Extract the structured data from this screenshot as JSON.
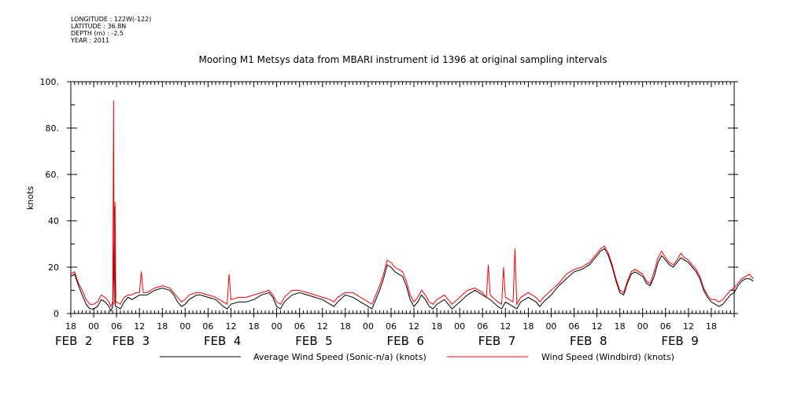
{
  "metadata": {
    "longitude": "LONGITUDE : 122W(-122)",
    "latitude": "LATITUDE : 36.8N",
    "depth": "DEPTH (m) : -2.5",
    "year": "YEAR : 2011"
  },
  "chart_data": {
    "type": "line",
    "title": "Mooring M1 Metsys data from MBARI instrument id 1396 at original sampling intervals",
    "ylabel": "knots",
    "xlabel": "",
    "ylim": [
      0,
      100
    ],
    "xlim_hours": [
      -6,
      168
    ],
    "y_ticks": [
      {
        "v": 0,
        "label": "0"
      },
      {
        "v": 20,
        "label": "20"
      },
      {
        "v": 40,
        "label": "40"
      },
      {
        "v": 60,
        "label": "60."
      },
      {
        "v": 80,
        "label": "80."
      },
      {
        "v": 100,
        "label": "100."
      }
    ],
    "x_hour_ticks": [
      {
        "h": -6,
        "label": "18"
      },
      {
        "h": 0,
        "label": "00"
      },
      {
        "h": 6,
        "label": "06"
      },
      {
        "h": 12,
        "label": "12"
      },
      {
        "h": 18,
        "label": "18"
      },
      {
        "h": 24,
        "label": "00"
      },
      {
        "h": 30,
        "label": "06"
      },
      {
        "h": 36,
        "label": "12"
      },
      {
        "h": 42,
        "label": "18"
      },
      {
        "h": 48,
        "label": "00"
      },
      {
        "h": 54,
        "label": "06"
      },
      {
        "h": 60,
        "label": "12"
      },
      {
        "h": 66,
        "label": "18"
      },
      {
        "h": 72,
        "label": "00"
      },
      {
        "h": 78,
        "label": "06"
      },
      {
        "h": 84,
        "label": "12"
      },
      {
        "h": 90,
        "label": "18"
      },
      {
        "h": 96,
        "label": "00"
      },
      {
        "h": 102,
        "label": "06"
      },
      {
        "h": 108,
        "label": "12"
      },
      {
        "h": 114,
        "label": "18"
      },
      {
        "h": 120,
        "label": "00"
      },
      {
        "h": 126,
        "label": "06"
      },
      {
        "h": 132,
        "label": "12"
      },
      {
        "h": 138,
        "label": "18"
      },
      {
        "h": 144,
        "label": "00"
      },
      {
        "h": 150,
        "label": "06"
      },
      {
        "h": 156,
        "label": "12"
      },
      {
        "h": 162,
        "label": "18"
      }
    ],
    "x_day_labels": [
      {
        "h": -6,
        "label": "FEB  2"
      },
      {
        "h": 9,
        "label": "FEB  3"
      },
      {
        "h": 33,
        "label": "FEB  4"
      },
      {
        "h": 57,
        "label": "FEB  5"
      },
      {
        "h": 81,
        "label": "FEB  6"
      },
      {
        "h": 105,
        "label": "FEB  7"
      },
      {
        "h": 129,
        "label": "FEB  8"
      },
      {
        "h": 153,
        "label": "FEB  9"
      }
    ],
    "series": [
      {
        "name": "Average Wind Speed (Sonic-n/a) (knots)",
        "color": "#000000",
        "points": [
          [
            -6,
            16
          ],
          [
            -5,
            17
          ],
          [
            -4,
            12
          ],
          [
            -3,
            8
          ],
          [
            -2,
            4
          ],
          [
            -1,
            2
          ],
          [
            0,
            2
          ],
          [
            1,
            3
          ],
          [
            2,
            6
          ],
          [
            3,
            5
          ],
          [
            4,
            3
          ],
          [
            4.5,
            1
          ],
          [
            5,
            3
          ],
          [
            5.5,
            46
          ],
          [
            5.7,
            3
          ],
          [
            6,
            3
          ],
          [
            7,
            2
          ],
          [
            8,
            5
          ],
          [
            9,
            7
          ],
          [
            10,
            6
          ],
          [
            11,
            7
          ],
          [
            12,
            8
          ],
          [
            14,
            8
          ],
          [
            16,
            10
          ],
          [
            18,
            11
          ],
          [
            20,
            10
          ],
          [
            21,
            8
          ],
          [
            22,
            5
          ],
          [
            23,
            3
          ],
          [
            24,
            4
          ],
          [
            25,
            6
          ],
          [
            27,
            8
          ],
          [
            28,
            8
          ],
          [
            30,
            7
          ],
          [
            32,
            6
          ],
          [
            34,
            3
          ],
          [
            35,
            2
          ],
          [
            36,
            4
          ],
          [
            38,
            5
          ],
          [
            40,
            5
          ],
          [
            42,
            6
          ],
          [
            44,
            8
          ],
          [
            46,
            9
          ],
          [
            47,
            7
          ],
          [
            48,
            3
          ],
          [
            49,
            2
          ],
          [
            50,
            5
          ],
          [
            52,
            8
          ],
          [
            54,
            9
          ],
          [
            56,
            8
          ],
          [
            58,
            7
          ],
          [
            60,
            6
          ],
          [
            62,
            4
          ],
          [
            63,
            3
          ],
          [
            64,
            5
          ],
          [
            66,
            8
          ],
          [
            68,
            7
          ],
          [
            70,
            5
          ],
          [
            72,
            3
          ],
          [
            73,
            2
          ],
          [
            74,
            6
          ],
          [
            75,
            10
          ],
          [
            76,
            15
          ],
          [
            77,
            21
          ],
          [
            78,
            20
          ],
          [
            79,
            18
          ],
          [
            80,
            17
          ],
          [
            81,
            16
          ],
          [
            82,
            12
          ],
          [
            83,
            6
          ],
          [
            84,
            3
          ],
          [
            85,
            5
          ],
          [
            86,
            8
          ],
          [
            87,
            6
          ],
          [
            88,
            3
          ],
          [
            89,
            2
          ],
          [
            90,
            4
          ],
          [
            92,
            6
          ],
          [
            93,
            4
          ],
          [
            94,
            2
          ],
          [
            96,
            5
          ],
          [
            98,
            8
          ],
          [
            100,
            10
          ],
          [
            102,
            8
          ],
          [
            104,
            6
          ],
          [
            106,
            3
          ],
          [
            107,
            2
          ],
          [
            108,
            5
          ],
          [
            110,
            3
          ],
          [
            111,
            2
          ],
          [
            112,
            5
          ],
          [
            114,
            7
          ],
          [
            116,
            5
          ],
          [
            117,
            3
          ],
          [
            118,
            5
          ],
          [
            120,
            8
          ],
          [
            122,
            12
          ],
          [
            124,
            15
          ],
          [
            126,
            18
          ],
          [
            128,
            19
          ],
          [
            130,
            21
          ],
          [
            132,
            25
          ],
          [
            133,
            27
          ],
          [
            134,
            28
          ],
          [
            135,
            25
          ],
          [
            136,
            20
          ],
          [
            137,
            14
          ],
          [
            138,
            9
          ],
          [
            139,
            8
          ],
          [
            140,
            13
          ],
          [
            141,
            17
          ],
          [
            142,
            18
          ],
          [
            144,
            16
          ],
          [
            145,
            13
          ],
          [
            146,
            12
          ],
          [
            147,
            16
          ],
          [
            148,
            22
          ],
          [
            149,
            25
          ],
          [
            150,
            23
          ],
          [
            151,
            21
          ],
          [
            152,
            20
          ],
          [
            153,
            22
          ],
          [
            154,
            24
          ],
          [
            155,
            23
          ],
          [
            156,
            22
          ],
          [
            157,
            20
          ],
          [
            158,
            18
          ],
          [
            159,
            15
          ],
          [
            160,
            10
          ],
          [
            161,
            7
          ],
          [
            162,
            5
          ],
          [
            163,
            4
          ],
          [
            164,
            3
          ],
          [
            165,
            4
          ],
          [
            166,
            6
          ],
          [
            167,
            8
          ],
          [
            168,
            9
          ],
          [
            169,
            12
          ],
          [
            170,
            14
          ],
          [
            171,
            15
          ],
          [
            172,
            15
          ],
          [
            173,
            14
          ]
        ]
      },
      {
        "name": "Wind Speed (Windbird) (knots)",
        "color": "#ff0000",
        "points": [
          [
            -6,
            17
          ],
          [
            -5,
            18
          ],
          [
            -4,
            13
          ],
          [
            -3,
            10
          ],
          [
            -2,
            6
          ],
          [
            -1,
            4
          ],
          [
            0,
            4
          ],
          [
            1,
            5
          ],
          [
            2,
            8
          ],
          [
            3,
            7
          ],
          [
            4,
            5
          ],
          [
            4.5,
            3
          ],
          [
            5,
            5
          ],
          [
            5.2,
            92
          ],
          [
            5.4,
            4
          ],
          [
            5.6,
            48
          ],
          [
            5.8,
            5
          ],
          [
            6,
            5
          ],
          [
            7,
            4
          ],
          [
            8,
            7
          ],
          [
            9,
            8
          ],
          [
            10,
            8
          ],
          [
            11,
            9
          ],
          [
            12,
            9
          ],
          [
            12.5,
            18
          ],
          [
            13,
            9
          ],
          [
            14,
            9
          ],
          [
            16,
            11
          ],
          [
            18,
            12
          ],
          [
            20,
            11
          ],
          [
            21,
            9
          ],
          [
            22,
            7
          ],
          [
            23,
            5
          ],
          [
            24,
            6
          ],
          [
            25,
            8
          ],
          [
            27,
            9
          ],
          [
            28,
            9
          ],
          [
            30,
            8
          ],
          [
            32,
            7
          ],
          [
            34,
            5
          ],
          [
            35,
            4
          ],
          [
            35.5,
            17
          ],
          [
            36,
            6
          ],
          [
            38,
            7
          ],
          [
            40,
            7
          ],
          [
            42,
            8
          ],
          [
            44,
            9
          ],
          [
            46,
            10
          ],
          [
            47,
            8
          ],
          [
            48,
            5
          ],
          [
            49,
            4
          ],
          [
            50,
            7
          ],
          [
            52,
            10
          ],
          [
            54,
            10
          ],
          [
            56,
            9
          ],
          [
            58,
            8
          ],
          [
            60,
            7
          ],
          [
            62,
            6
          ],
          [
            63,
            5
          ],
          [
            64,
            7
          ],
          [
            66,
            9
          ],
          [
            68,
            9
          ],
          [
            70,
            7
          ],
          [
            72,
            5
          ],
          [
            73,
            4
          ],
          [
            74,
            8
          ],
          [
            75,
            12
          ],
          [
            76,
            17
          ],
          [
            77,
            23
          ],
          [
            78,
            22
          ],
          [
            79,
            20
          ],
          [
            80,
            19
          ],
          [
            81,
            18
          ],
          [
            82,
            14
          ],
          [
            83,
            8
          ],
          [
            84,
            5
          ],
          [
            85,
            7
          ],
          [
            86,
            10
          ],
          [
            87,
            8
          ],
          [
            88,
            5
          ],
          [
            89,
            4
          ],
          [
            90,
            6
          ],
          [
            92,
            8
          ],
          [
            93,
            6
          ],
          [
            94,
            4
          ],
          [
            96,
            7
          ],
          [
            98,
            10
          ],
          [
            100,
            11
          ],
          [
            102,
            9
          ],
          [
            103,
            7
          ],
          [
            103.5,
            21
          ],
          [
            104,
            8
          ],
          [
            106,
            5
          ],
          [
            107,
            4
          ],
          [
            107.5,
            20
          ],
          [
            108,
            7
          ],
          [
            110,
            5
          ],
          [
            110.5,
            28
          ],
          [
            111,
            4
          ],
          [
            112,
            7
          ],
          [
            114,
            9
          ],
          [
            116,
            7
          ],
          [
            117,
            5
          ],
          [
            118,
            7
          ],
          [
            120,
            10
          ],
          [
            122,
            13
          ],
          [
            124,
            17
          ],
          [
            126,
            19
          ],
          [
            128,
            20
          ],
          [
            130,
            22
          ],
          [
            132,
            26
          ],
          [
            133,
            28
          ],
          [
            134,
            29
          ],
          [
            135,
            26
          ],
          [
            136,
            21
          ],
          [
            137,
            15
          ],
          [
            138,
            10
          ],
          [
            139,
            9
          ],
          [
            140,
            14
          ],
          [
            141,
            18
          ],
          [
            142,
            19
          ],
          [
            144,
            17
          ],
          [
            145,
            14
          ],
          [
            146,
            13
          ],
          [
            147,
            18
          ],
          [
            148,
            24
          ],
          [
            149,
            27
          ],
          [
            150,
            24
          ],
          [
            151,
            22
          ],
          [
            152,
            21
          ],
          [
            153,
            23
          ],
          [
            154,
            26
          ],
          [
            155,
            24
          ],
          [
            156,
            23
          ],
          [
            157,
            21
          ],
          [
            158,
            19
          ],
          [
            159,
            16
          ],
          [
            160,
            11
          ],
          [
            161,
            8
          ],
          [
            162,
            6
          ],
          [
            163,
            6
          ],
          [
            164,
            5
          ],
          [
            165,
            6
          ],
          [
            166,
            8
          ],
          [
            167,
            10
          ],
          [
            168,
            11
          ],
          [
            169,
            13
          ],
          [
            170,
            15
          ],
          [
            171,
            16
          ],
          [
            172,
            17
          ],
          [
            173,
            15
          ]
        ]
      }
    ],
    "grid": false,
    "legend_placement": "bottom"
  }
}
